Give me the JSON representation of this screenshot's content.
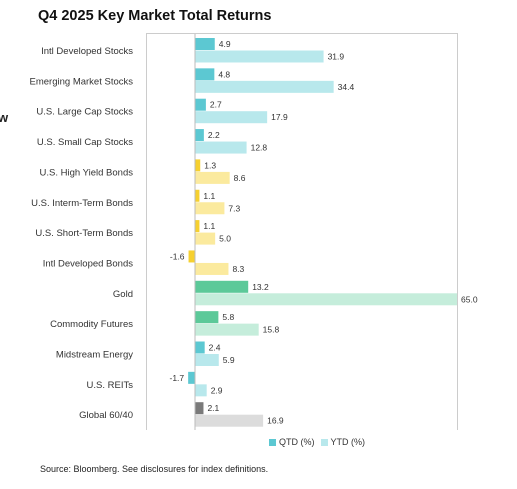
{
  "page": {
    "title": "Q4 2025 Key Market Total Returns",
    "edge_mark": "w",
    "source": "Source: Bloomberg. See disclosures for index definitions."
  },
  "colors": {
    "qtd_default": "#5cc8d2",
    "ytd_default": "#b8e8ec",
    "qtd_bonds": "#f6d02f",
    "ytd_bonds": "#fbea9e",
    "qtd_commodities": "#5cc999",
    "ytd_commodities": "#c5eddb",
    "qtd_balanced": "#7a7a7a",
    "ytd_balanced": "#dcdcdc",
    "frame": "#cccccc",
    "axis": "#bbbbbb"
  },
  "chart_data": {
    "type": "bar",
    "orientation": "horizontal",
    "title": "Q4 2025 Key Market Total Returns",
    "xlim": [
      -2.8,
      65.0
    ],
    "grid": false,
    "legend_position": "bottom",
    "categories": [
      "Intl Developed Stocks",
      "Emerging Market Stocks",
      "U.S. Large Cap Stocks",
      "U.S. Small Cap Stocks",
      "U.S. High Yield Bonds",
      "U.S. Interm-Term Bonds",
      "U.S. Short-Term Bonds",
      "Intl Developed Bonds",
      "Gold",
      "Commodity Futures",
      "Midstream Energy",
      "U.S. REITs",
      "Global 60/40"
    ],
    "groups": [
      "stocks",
      "stocks",
      "stocks",
      "stocks",
      "bonds",
      "bonds",
      "bonds",
      "bonds",
      "commodities",
      "commodities",
      "stocks",
      "stocks",
      "balanced"
    ],
    "series": [
      {
        "name": "QTD (%)",
        "values": [
          4.9,
          4.8,
          2.7,
          2.2,
          1.3,
          1.1,
          1.1,
          -1.6,
          13.2,
          5.8,
          2.4,
          -1.7,
          2.1
        ]
      },
      {
        "name": "YTD (%)",
        "values": [
          31.9,
          34.4,
          17.9,
          12.8,
          8.6,
          7.3,
          5.0,
          8.3,
          65.0,
          15.8,
          5.9,
          2.9,
          16.9
        ]
      }
    ]
  }
}
